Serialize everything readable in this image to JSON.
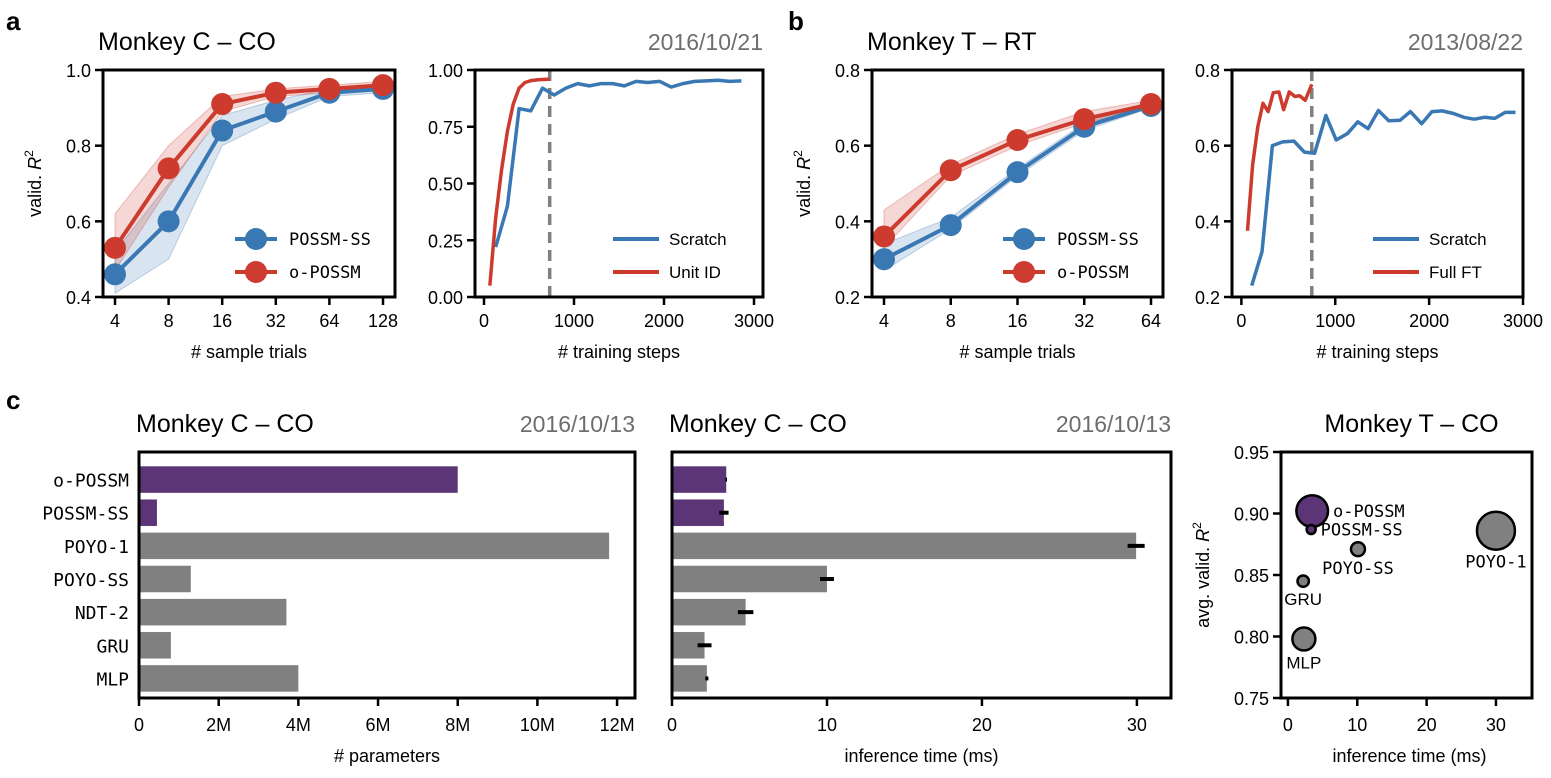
{
  "colors": {
    "blue": "#3a78b4",
    "red": "#cc3b2e",
    "purple": "#5c3577",
    "gray": "#808080",
    "dashed": "#808080",
    "date": "#6e6e6e"
  },
  "panel_letters": [
    "a",
    "b",
    "c"
  ],
  "chart_data": [
    {
      "id": "a1",
      "type": "line",
      "title": "Monkey C – CO",
      "xlabel": "# sample trials",
      "ylabel": "valid. R²",
      "ylabel_main": "valid. ",
      "ylabel_var": "R",
      "ylabel_sup": "2",
      "x_scale": "log2",
      "categories": [
        "4",
        "8",
        "16",
        "32",
        "64",
        "128"
      ],
      "x": [
        4,
        8,
        16,
        32,
        64,
        128
      ],
      "ylim": [
        0.4,
        1.0
      ],
      "yticks": [
        "0.4",
        "0.6",
        "0.8",
        "1.0"
      ],
      "ytick_values": [
        0.4,
        0.6,
        0.8,
        1.0
      ],
      "legend": "lower-right",
      "series": [
        {
          "name": "POSSM-SS",
          "color": "blue",
          "values": [
            0.46,
            0.6,
            0.84,
            0.89,
            0.94,
            0.95
          ],
          "lower": [
            0.41,
            0.5,
            0.8,
            0.87,
            0.93,
            0.94
          ],
          "upper": [
            0.52,
            0.7,
            0.88,
            0.92,
            0.95,
            0.96
          ]
        },
        {
          "name": "o-POSSM",
          "color": "red",
          "values": [
            0.53,
            0.74,
            0.91,
            0.94,
            0.95,
            0.96
          ],
          "lower": [
            0.47,
            0.69,
            0.89,
            0.93,
            0.94,
            0.95
          ],
          "upper": [
            0.62,
            0.8,
            0.93,
            0.95,
            0.96,
            0.97
          ]
        }
      ]
    },
    {
      "id": "a2",
      "type": "line",
      "title": "",
      "date": "2016/10/21",
      "xlabel": "# training steps",
      "ylabel": "",
      "xlim": [
        -100,
        3100
      ],
      "xticks": [
        "0",
        "1000",
        "2000",
        "3000"
      ],
      "xtick_values": [
        0,
        1000,
        2000,
        3000
      ],
      "ylim": [
        0.0,
        1.0
      ],
      "yticks": [
        "0.00",
        "0.25",
        "0.50",
        "0.75",
        "1.00"
      ],
      "ytick_values": [
        0,
        0.25,
        0.5,
        0.75,
        1.0
      ],
      "vline": 730,
      "legend": "lower-right",
      "series": [
        {
          "name": "Scratch",
          "color": "blue",
          "x": [
            130,
            260,
            390,
            520,
            650,
            780,
            910,
            1040,
            1170,
            1300,
            1430,
            1560,
            1690,
            1820,
            1950,
            2080,
            2210,
            2340,
            2470,
            2600,
            2730,
            2860
          ],
          "values": [
            0.22,
            0.4,
            0.83,
            0.82,
            0.92,
            0.89,
            0.92,
            0.94,
            0.93,
            0.94,
            0.94,
            0.93,
            0.95,
            0.945,
            0.95,
            0.925,
            0.94,
            0.95,
            0.952,
            0.955,
            0.95,
            0.952
          ]
        },
        {
          "name": "Unit ID",
          "color": "red",
          "x": [
            65,
            130,
            195,
            260,
            325,
            390,
            455,
            520,
            600,
            730
          ],
          "values": [
            0.05,
            0.35,
            0.56,
            0.73,
            0.85,
            0.92,
            0.945,
            0.953,
            0.957,
            0.96
          ]
        }
      ]
    },
    {
      "id": "b1",
      "type": "line",
      "title": "Monkey T – RT",
      "xlabel": "# sample trials",
      "ylabel": "valid. R²",
      "ylabel_main": "valid. ",
      "ylabel_var": "R",
      "ylabel_sup": "2",
      "x_scale": "log2",
      "categories": [
        "4",
        "8",
        "16",
        "32",
        "64"
      ],
      "x": [
        4,
        8,
        16,
        32,
        64
      ],
      "ylim": [
        0.2,
        0.8
      ],
      "yticks": [
        "0.2",
        "0.4",
        "0.6",
        "0.8"
      ],
      "ytick_values": [
        0.2,
        0.4,
        0.6,
        0.8
      ],
      "legend": "lower-right",
      "series": [
        {
          "name": "POSSM-SS",
          "color": "blue",
          "values": [
            0.3,
            0.39,
            0.53,
            0.65,
            0.705
          ],
          "lower": [
            0.27,
            0.38,
            0.52,
            0.64,
            0.7
          ],
          "upper": [
            0.34,
            0.41,
            0.54,
            0.66,
            0.71
          ]
        },
        {
          "name": "o-POSSM",
          "color": "red",
          "values": [
            0.36,
            0.535,
            0.615,
            0.67,
            0.71
          ],
          "lower": [
            0.33,
            0.52,
            0.6,
            0.66,
            0.7
          ],
          "upper": [
            0.43,
            0.55,
            0.63,
            0.69,
            0.72
          ]
        }
      ]
    },
    {
      "id": "b2",
      "type": "line",
      "title": "",
      "date": "2013/08/22",
      "xlabel": "# training steps",
      "ylabel": "",
      "xlim": [
        -100,
        3000
      ],
      "xticks": [
        "0",
        "1000",
        "2000",
        "3000"
      ],
      "xtick_values": [
        0,
        1000,
        2000,
        3000
      ],
      "ylim": [
        0.2,
        0.8
      ],
      "yticks": [
        "0.2",
        "0.4",
        "0.6",
        "0.8"
      ],
      "ytick_values": [
        0.2,
        0.4,
        0.6,
        0.8
      ],
      "vline": 750,
      "legend": "lower-right",
      "series": [
        {
          "name": "Scratch",
          "color": "blue",
          "x": [
            110,
            220,
            330,
            440,
            560,
            670,
            780,
            900,
            1010,
            1130,
            1240,
            1350,
            1460,
            1570,
            1690,
            1800,
            1920,
            2030,
            2140,
            2260,
            2370,
            2480,
            2590,
            2700,
            2810,
            2920
          ],
          "values": [
            0.23,
            0.32,
            0.6,
            0.61,
            0.612,
            0.583,
            0.58,
            0.68,
            0.615,
            0.632,
            0.663,
            0.645,
            0.693,
            0.666,
            0.667,
            0.69,
            0.658,
            0.69,
            0.692,
            0.685,
            0.675,
            0.67,
            0.675,
            0.672,
            0.688,
            0.688
          ]
        },
        {
          "name": "Full FT",
          "color": "red",
          "x": [
            65,
            120,
            175,
            230,
            285,
            340,
            400,
            450,
            510,
            570,
            620,
            680,
            750
          ],
          "values": [
            0.375,
            0.55,
            0.65,
            0.712,
            0.69,
            0.74,
            0.742,
            0.695,
            0.742,
            0.73,
            0.732,
            0.72,
            0.762
          ]
        }
      ]
    },
    {
      "id": "c1",
      "type": "bar",
      "orientation": "horizontal",
      "title": "Monkey C – CO",
      "date": "2016/10/13",
      "xlabel": "# parameters",
      "categories": [
        "o-POSSM",
        "POSSM-SS",
        "POYO-1",
        "POYO-SS",
        "NDT-2",
        "GRU",
        "MLP"
      ],
      "bar_colors": [
        "purple",
        "purple",
        "gray",
        "gray",
        "gray",
        "gray",
        "gray"
      ],
      "values": [
        8000000,
        450000,
        11800000,
        1300000,
        3700000,
        800000,
        4000000
      ],
      "xlim": [
        0,
        12450000
      ],
      "xticks": [
        "0",
        "2M",
        "4M",
        "6M",
        "8M",
        "10M",
        "12M"
      ],
      "xtick_values": [
        0,
        2000000,
        4000000,
        6000000,
        8000000,
        10000000,
        12000000
      ]
    },
    {
      "id": "c2",
      "type": "bar",
      "orientation": "horizontal",
      "title": "Monkey C – CO",
      "date": "2016/10/13",
      "xlabel": "inference time (ms)",
      "categories": [
        "o-POSSM",
        "POSSM-SS",
        "POYO-1",
        "POYO-SS",
        "NDT-2",
        "GRU",
        "MLP"
      ],
      "bar_colors": [
        "purple",
        "purple",
        "gray",
        "gray",
        "gray",
        "gray",
        "gray"
      ],
      "values": [
        3.5,
        3.35,
        29.95,
        10.0,
        4.75,
        2.1,
        2.25
      ],
      "errors": [
        0.05,
        0.3,
        0.55,
        0.45,
        0.5,
        0.45,
        0.1
      ],
      "xlim": [
        0,
        32.2
      ],
      "xticks": [
        "0",
        "10",
        "20",
        "30"
      ],
      "xtick_values": [
        0,
        10,
        20,
        30
      ]
    },
    {
      "id": "c3",
      "type": "scatter",
      "title": "Monkey T – CO",
      "xlabel": "inference time (ms)",
      "ylabel": "avg. valid. R²",
      "ylabel_main": "avg. valid. ",
      "ylabel_var": "R",
      "ylabel_sup": "2",
      "xlim": [
        -1,
        35.2
      ],
      "xticks": [
        "0",
        "10",
        "20",
        "30"
      ],
      "xtick_values": [
        0,
        10,
        20,
        30
      ],
      "ylim": [
        0.75,
        0.95
      ],
      "yticks": [
        "0.75",
        "0.80",
        "0.85",
        "0.90",
        "0.95"
      ],
      "ytick_values": [
        0.75,
        0.8,
        0.85,
        0.9,
        0.95
      ],
      "points": [
        {
          "name": "o-POSSM",
          "x": 3.5,
          "y": 0.902,
          "params": 8000000,
          "color": "purple",
          "label_pos": "right"
        },
        {
          "name": "POSSM-SS",
          "x": 3.35,
          "y": 0.887,
          "params": 450000,
          "color": "purple",
          "label_pos": "right"
        },
        {
          "name": "POYO-1",
          "x": 30.0,
          "y": 0.886,
          "params": 11800000,
          "color": "gray",
          "label_pos": "below"
        },
        {
          "name": "POYO-SS",
          "x": 10.1,
          "y": 0.871,
          "params": 1300000,
          "color": "gray",
          "label_pos": "below"
        },
        {
          "name": "GRU",
          "x": 2.2,
          "y": 0.845,
          "params": 800000,
          "color": "gray",
          "label_pos": "below"
        },
        {
          "name": "MLP",
          "x": 2.3,
          "y": 0.798,
          "params": 4000000,
          "color": "gray",
          "label_pos": "below"
        }
      ]
    }
  ]
}
